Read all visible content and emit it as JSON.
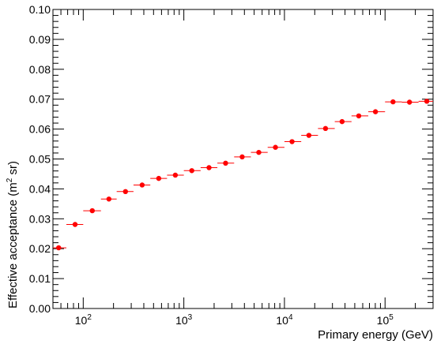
{
  "chart_data": {
    "type": "scatter",
    "title": "",
    "xlabel": "Primary energy (GeV)",
    "ylabel": {
      "main": "Effective acceptance (m",
      "sup": "2",
      "tail": " sr)"
    },
    "xscale": "log",
    "xlim": [
      50,
      300000
    ],
    "ylim": [
      0.0,
      0.1
    ],
    "yticks": [
      "0.00",
      "0.01",
      "0.02",
      "0.03",
      "0.04",
      "0.05",
      "0.06",
      "0.07",
      "0.08",
      "0.09",
      "0.10"
    ],
    "xticks": [
      {
        "value": 100,
        "base": "10",
        "exp": "2"
      },
      {
        "value": 1000,
        "base": "10",
        "exp": "3"
      },
      {
        "value": 10000,
        "base": "10",
        "exp": "4"
      },
      {
        "value": 100000,
        "base": "10",
        "exp": "5"
      }
    ],
    "marker_color": "#ff0000",
    "grid": false,
    "legend": "none",
    "points": [
      {
        "x": 57,
        "y": 0.0203,
        "xlo": 50,
        "xhi": 68
      },
      {
        "x": 83,
        "y": 0.0281,
        "xlo": 68,
        "xhi": 100
      },
      {
        "x": 123,
        "y": 0.0327,
        "xlo": 100,
        "xhi": 150
      },
      {
        "x": 180,
        "y": 0.0366,
        "xlo": 150,
        "xhi": 215
      },
      {
        "x": 263,
        "y": 0.0391,
        "xlo": 215,
        "xhi": 316
      },
      {
        "x": 385,
        "y": 0.0413,
        "xlo": 316,
        "xhi": 464
      },
      {
        "x": 563,
        "y": 0.0435,
        "xlo": 464,
        "xhi": 681
      },
      {
        "x": 823,
        "y": 0.0446,
        "xlo": 681,
        "xhi": 1000
      },
      {
        "x": 1200,
        "y": 0.0461,
        "xlo": 1000,
        "xhi": 1468
      },
      {
        "x": 1780,
        "y": 0.0471,
        "xlo": 1468,
        "xhi": 2154
      },
      {
        "x": 2600,
        "y": 0.0486,
        "xlo": 2154,
        "xhi": 3162
      },
      {
        "x": 3800,
        "y": 0.0507,
        "xlo": 3162,
        "xhi": 4642
      },
      {
        "x": 5560,
        "y": 0.0522,
        "xlo": 4642,
        "xhi": 6813
      },
      {
        "x": 8140,
        "y": 0.0539,
        "xlo": 6813,
        "xhi": 10000
      },
      {
        "x": 11900,
        "y": 0.0558,
        "xlo": 10000,
        "xhi": 14678
      },
      {
        "x": 17500,
        "y": 0.0579,
        "xlo": 14678,
        "xhi": 21544
      },
      {
        "x": 25600,
        "y": 0.0602,
        "xlo": 21544,
        "xhi": 31623
      },
      {
        "x": 37400,
        "y": 0.0625,
        "xlo": 31623,
        "xhi": 46416
      },
      {
        "x": 54800,
        "y": 0.0644,
        "xlo": 46416,
        "xhi": 68129
      },
      {
        "x": 80300,
        "y": 0.0658,
        "xlo": 68129,
        "xhi": 100000
      },
      {
        "x": 120000,
        "y": 0.0691,
        "xlo": 100000,
        "xhi": 146780
      },
      {
        "x": 175000,
        "y": 0.069,
        "xlo": 146780,
        "xhi": 215443
      },
      {
        "x": 260000,
        "y": 0.0693,
        "xlo": 215443,
        "xhi": 300000
      }
    ]
  }
}
